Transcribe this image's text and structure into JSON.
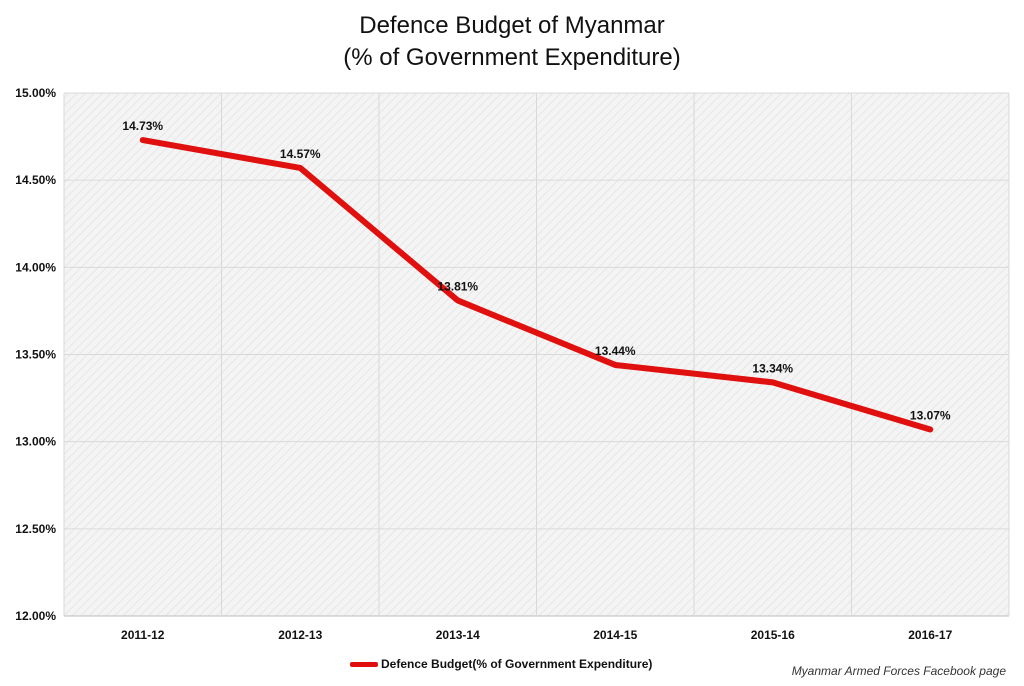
{
  "chart_data": {
    "type": "line",
    "title": "Defence Budget of Myanmar",
    "subtitle": "(% of Government Expenditure)",
    "categories": [
      "2011-12",
      "2012-13",
      "2013-14",
      "2014-15",
      "2015-16",
      "2016-17"
    ],
    "series": [
      {
        "name": "Defence Budget(% of Government Expenditure)",
        "values": [
          14.73,
          14.57,
          13.81,
          13.44,
          13.34,
          13.07
        ],
        "labels": [
          "14.73%",
          "14.57%",
          "13.81%",
          "13.44%",
          "13.34%",
          "13.07%"
        ],
        "color": "#e0100f"
      }
    ],
    "ylim": [
      12.0,
      15.0
    ],
    "yticks": [
      12.0,
      12.5,
      13.0,
      13.5,
      14.0,
      14.5,
      15.0
    ],
    "ytick_labels": [
      "12.00%",
      "12.50%",
      "13.00%",
      "13.50%",
      "14.00%",
      "14.50%",
      "15.00%"
    ],
    "grid": true,
    "legend": "bottom-center",
    "source": "Myanmar Armed Forces Facebook page"
  }
}
